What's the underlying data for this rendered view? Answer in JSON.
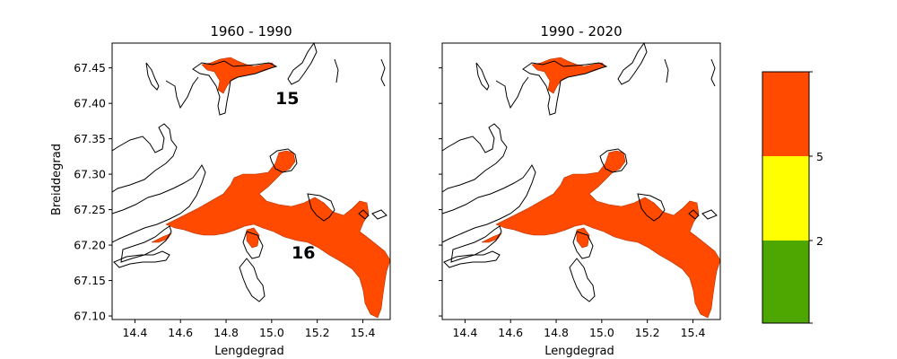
{
  "figure": {
    "panels": [
      {
        "title": "1960 - 1990",
        "xlabel": "Lengdegrad",
        "ylabel": "Breiddegrad",
        "region_labels": [
          {
            "text": "15",
            "lon": 15.02,
            "lat": 67.407
          },
          {
            "text": "16",
            "lon": 15.12,
            "lat": 67.185
          }
        ]
      },
      {
        "title": "1990 - 2020",
        "xlabel": "Lengdegrad",
        "ylabel": "",
        "region_labels": []
      }
    ],
    "x_ticks": [
      "14.4",
      "14.6",
      "14.8",
      "15.0",
      "15.2",
      "15.4"
    ],
    "y_ticks": [
      "67.45",
      "67.40",
      "67.35",
      "67.30",
      "67.25",
      "67.20",
      "67.15",
      "67.10"
    ],
    "colorbar": {
      "ticks": [
        "2",
        "5"
      ],
      "levels": [
        {
          "color": "#4ea600",
          "range": "< 2"
        },
        {
          "color": "#ffff00",
          "range": "2 - 5"
        },
        {
          "color": "#ff4a00",
          "range": "> 5"
        }
      ]
    }
  },
  "map_data": {
    "lon_range": [
      14.3,
      15.52
    ],
    "lat_range": [
      67.095,
      67.485
    ],
    "fill_color": "#ff4a00",
    "coast_color": "#000000"
  }
}
